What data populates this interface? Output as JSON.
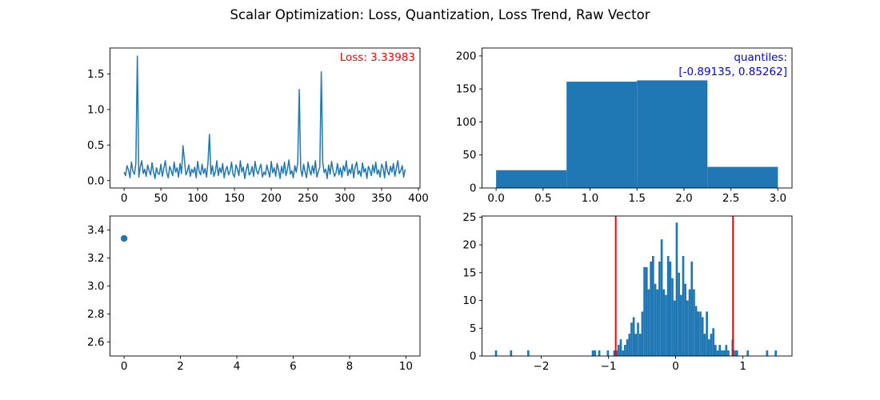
{
  "figure": {
    "title": "Scalar Optimization: Loss, Quantization, Loss Trend, Raw Vector",
    "background": "#ffffff",
    "colors": {
      "series_blue": "#1f77b4",
      "annotation_red": "#ff0000",
      "annotation_blue": "#0000ff",
      "axis_black": "#000000"
    }
  },
  "chart_data": [
    {
      "id": "plot-loss",
      "type": "line",
      "name": "loss-per-element",
      "color": "#1f77b4",
      "annotation": {
        "lines": [
          "Loss: 3.33983"
        ],
        "color": "#ff0000",
        "anchor": "top-right"
      },
      "xlim": [
        -19.15,
        402.15
      ],
      "ylim": [
        -0.104,
        1.864
      ],
      "xticks": {
        "values": [
          0,
          50,
          100,
          150,
          200,
          250,
          300,
          350,
          400
        ],
        "labels": [
          "0",
          "50",
          "100",
          "150",
          "200",
          "250",
          "300",
          "350",
          "400"
        ]
      },
      "yticks": {
        "values": [
          0.0,
          0.5,
          1.0,
          1.5
        ],
        "labels": [
          "0.0",
          "0.5",
          "1.0",
          "1.5"
        ]
      },
      "x_step": 2,
      "spikes": [
        {
          "x": 18,
          "y": 1.75
        },
        {
          "x": 80,
          "y": 0.49
        },
        {
          "x": 116,
          "y": 0.65
        },
        {
          "x": 237,
          "y": 1.28
        },
        {
          "x": 268,
          "y": 1.53
        }
      ],
      "baseline_values": [
        0.12,
        0.07,
        0.21,
        0.15,
        0.04,
        0.26,
        0.13,
        0.09,
        0.24,
        0.11,
        0.05,
        0.19,
        0.28,
        0.1,
        0.16,
        0.06,
        0.22,
        0.14,
        0.08,
        0.25,
        0.12,
        0.03,
        0.18,
        0.1,
        0.09,
        0.23,
        0.06,
        0.17,
        0.28,
        0.11,
        0.04,
        0.2,
        0.14,
        0.07,
        0.26,
        0.12,
        0.18,
        0.05,
        0.24,
        0.1,
        0.15,
        0.29,
        0.08,
        0.13,
        0.22,
        0.06,
        0.16,
        0.11,
        0.19,
        0.04,
        0.27,
        0.13,
        0.08,
        0.23,
        0.1,
        0.17,
        0.05,
        0.25,
        0.14,
        0.09,
        0.21,
        0.06,
        0.12,
        0.28,
        0.07,
        0.18,
        0.11,
        0.24,
        0.04,
        0.15,
        0.2,
        0.08,
        0.13,
        0.26,
        0.09,
        0.05,
        0.22,
        0.16,
        0.07,
        0.28,
        0.12,
        0.19,
        0.03,
        0.15,
        0.24,
        0.08,
        0.11,
        0.2,
        0.06,
        0.27,
        0.14,
        0.09,
        0.17,
        0.23,
        0.05,
        0.12,
        0.08,
        0.22,
        0.13,
        0.05,
        0.27,
        0.11,
        0.18,
        0.06,
        0.24,
        0.15,
        0.03,
        0.2,
        0.1,
        0.26,
        0.07,
        0.16,
        0.29,
        0.09,
        0.14,
        0.04,
        0.21,
        0.12,
        0.25,
        0.08,
        0.17,
        0.06,
        0.23,
        0.12,
        0.04,
        0.26,
        0.15,
        0.08,
        0.21,
        0.1,
        0.28,
        0.05,
        0.13,
        0.19,
        0.07,
        0.25,
        0.11,
        0.16,
        0.03,
        0.22,
        0.09,
        0.27,
        0.14,
        0.06,
        0.11,
        0.24,
        0.08,
        0.18,
        0.05,
        0.21,
        0.13,
        0.28,
        0.07,
        0.16,
        0.1,
        0.23,
        0.04,
        0.19,
        0.26,
        0.09,
        0.14,
        0.06,
        0.25,
        0.12,
        0.17,
        0.03,
        0.2,
        0.15,
        0.07,
        0.22,
        0.11,
        0.26,
        0.09,
        0.15,
        0.05,
        0.23,
        0.18,
        0.04,
        0.27,
        0.13,
        0.08,
        0.2,
        0.12,
        0.24,
        0.06,
        0.17,
        0.28,
        0.1,
        0.14,
        0.21,
        0.05,
        0.16
      ]
    },
    {
      "id": "plot-quant",
      "type": "bar",
      "name": "quantization-histogram",
      "color": "#1f77b4",
      "annotation": {
        "lines": [
          "quantiles:",
          "[-0.89135, 0.85262]"
        ],
        "color": "#0000ff",
        "anchor": "top-right"
      },
      "bin_start": 0.0,
      "bin_width": 0.75,
      "values": [
        27,
        161,
        163,
        32
      ],
      "xlim": [
        -0.15,
        3.15
      ],
      "ylim": [
        0,
        212
      ],
      "xticks": {
        "values": [
          0.0,
          0.5,
          1.0,
          1.5,
          2.0,
          2.5,
          3.0
        ],
        "labels": [
          "0.0",
          "0.5",
          "1.0",
          "1.5",
          "2.0",
          "2.5",
          "3.0"
        ]
      },
      "yticks": {
        "values": [
          0,
          50,
          100,
          150,
          200
        ],
        "labels": [
          "0",
          "50",
          "100",
          "150",
          "200"
        ]
      }
    },
    {
      "id": "plot-trend",
      "type": "scatter",
      "name": "loss-trend",
      "color": "#1f77b4",
      "points": [
        {
          "x": 0,
          "y": 3.33983
        }
      ],
      "marker_radius": 4.2,
      "xlim": [
        -0.5,
        10.5
      ],
      "ylim": [
        2.5,
        3.5
      ],
      "xticks": {
        "values": [
          0,
          2,
          4,
          6,
          8,
          10
        ],
        "labels": [
          "0",
          "2",
          "4",
          "6",
          "8",
          "10"
        ]
      },
      "yticks": {
        "values": [
          2.6,
          2.8,
          3.0,
          3.2,
          3.4
        ],
        "labels": [
          "2.6",
          "2.8",
          "3.0",
          "3.2",
          "3.4"
        ]
      }
    },
    {
      "id": "plot-raw",
      "type": "bar",
      "name": "raw-vector-histogram",
      "color": "#1f77b4",
      "bin_start": -2.688,
      "bin_width": 0.032,
      "values": [
        1,
        0,
        0,
        0,
        0,
        0,
        0,
        1,
        0,
        0,
        0,
        0,
        0,
        0,
        0,
        1,
        0,
        0,
        0,
        0,
        0,
        0,
        0,
        0,
        0,
        0,
        0,
        0,
        0,
        0,
        0,
        0,
        0,
        0,
        0,
        0,
        0,
        0,
        0,
        0,
        0,
        0,
        0,
        0,
        0,
        1,
        1,
        0,
        1,
        0,
        0,
        0,
        1,
        0,
        0,
        1,
        1,
        2,
        3,
        1,
        2,
        3,
        4,
        6,
        7,
        4,
        6,
        4,
        8,
        16,
        16,
        12,
        17,
        18,
        13,
        12,
        17,
        21,
        12,
        11,
        18,
        17,
        14,
        10,
        24,
        15,
        11,
        18,
        13,
        10,
        12,
        17,
        12,
        9,
        8,
        8,
        7,
        4,
        8,
        3,
        4,
        5,
        2,
        1,
        2,
        1,
        1,
        2,
        1,
        0,
        3,
        1,
        1,
        0,
        0,
        0,
        0,
        1,
        0,
        0,
        0,
        0,
        0,
        0,
        0,
        0,
        1,
        0,
        0,
        0,
        1,
        0
      ],
      "vlines": [
        {
          "x": -0.89135,
          "color": "#ff0000"
        },
        {
          "x": 0.85262,
          "color": "#ff0000"
        }
      ],
      "xlim": [
        -2.88,
        1.73
      ],
      "ylim": [
        0,
        25.2
      ],
      "xticks": {
        "values": [
          -2,
          -1,
          0,
          1
        ],
        "labels": [
          "−2",
          "−1",
          "0",
          "1"
        ]
      },
      "yticks": {
        "values": [
          0,
          5,
          10,
          15,
          20,
          25
        ],
        "labels": [
          "0",
          "5",
          "10",
          "15",
          "20",
          "25"
        ]
      }
    }
  ]
}
